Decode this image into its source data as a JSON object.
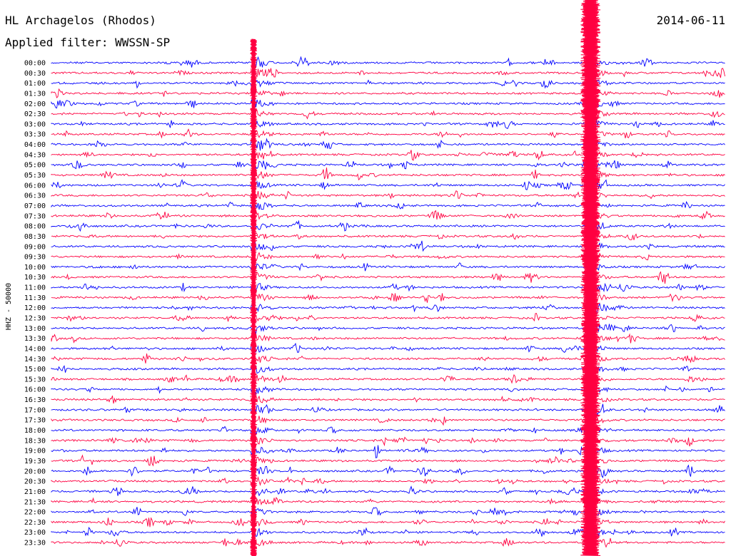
{
  "header": {
    "station": "HL Archagelos (Rhodos)",
    "filter": "Applied filter: WWSSN-SP",
    "date": "2014-06-11"
  },
  "chart_data": {
    "type": "line",
    "title": "HL Archagelos (Rhodos)",
    "subtitle": "Applied filter: WWSSN-SP",
    "ylabel": "HHZ - 50000",
    "row_labels": [
      "00:00",
      "00:30",
      "01:00",
      "01:30",
      "02:00",
      "02:30",
      "03:00",
      "03:30",
      "04:00",
      "04:30",
      "05:00",
      "05:30",
      "06:00",
      "06:30",
      "07:00",
      "07:30",
      "08:00",
      "08:30",
      "09:00",
      "09:30",
      "10:00",
      "10:30",
      "11:00",
      "11:30",
      "12:00",
      "12:30",
      "13:00",
      "13:30",
      "14:00",
      "14:30",
      "15:00",
      "15:30",
      "16:00",
      "16:30",
      "17:00",
      "17:30",
      "18:00",
      "18:30",
      "19:00",
      "19:30",
      "20:00",
      "20:30",
      "21:00",
      "21:30",
      "22:00",
      "22:30",
      "23:00",
      "23:30"
    ],
    "trace_colors": [
      "#0000ff",
      "#ff0040"
    ],
    "events": [
      {
        "minute_in_row": 9.0,
        "row_start": 0,
        "row_end": 47,
        "label": ""
      },
      {
        "minute_in_row": 24.0,
        "row_start": 0,
        "row_end": 47,
        "label": ""
      }
    ]
  }
}
